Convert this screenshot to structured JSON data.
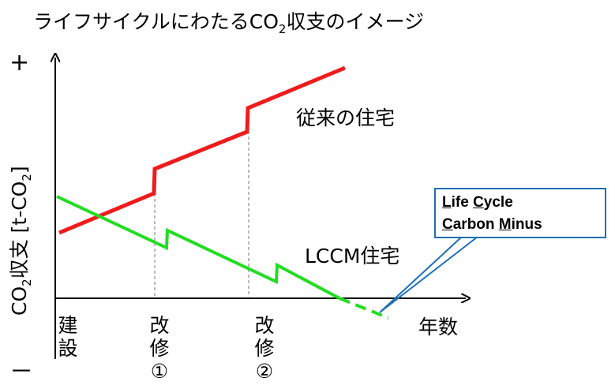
{
  "title": {
    "prefix": "ライフサイクルにわたるCO",
    "sub": "2",
    "suffix": "収支のイメージ"
  },
  "axis": {
    "plus": "+",
    "minus": "－",
    "y_label": {
      "prefix": "CO",
      "sub": "2",
      "mid": "収支 [t-CO",
      "sub2": "2",
      "suffix": "]"
    },
    "x_label": "年数"
  },
  "milestones": [
    {
      "label": "建設"
    },
    {
      "label": "改修①"
    },
    {
      "label": "改修②"
    }
  ],
  "series": [
    {
      "name": "従来の住宅",
      "color": "#ee1c1c"
    },
    {
      "name": "LCCM住宅",
      "color": "#22dd22"
    }
  ],
  "callout": {
    "line1": [
      {
        "u": "L",
        "t": "ife "
      },
      {
        "u": "C",
        "t": "ycle"
      }
    ],
    "line2": [
      {
        "u": "C",
        "t": "arbon "
      },
      {
        "u": "M",
        "t": "inus"
      }
    ],
    "border_color": "#1f6fb5"
  }
}
